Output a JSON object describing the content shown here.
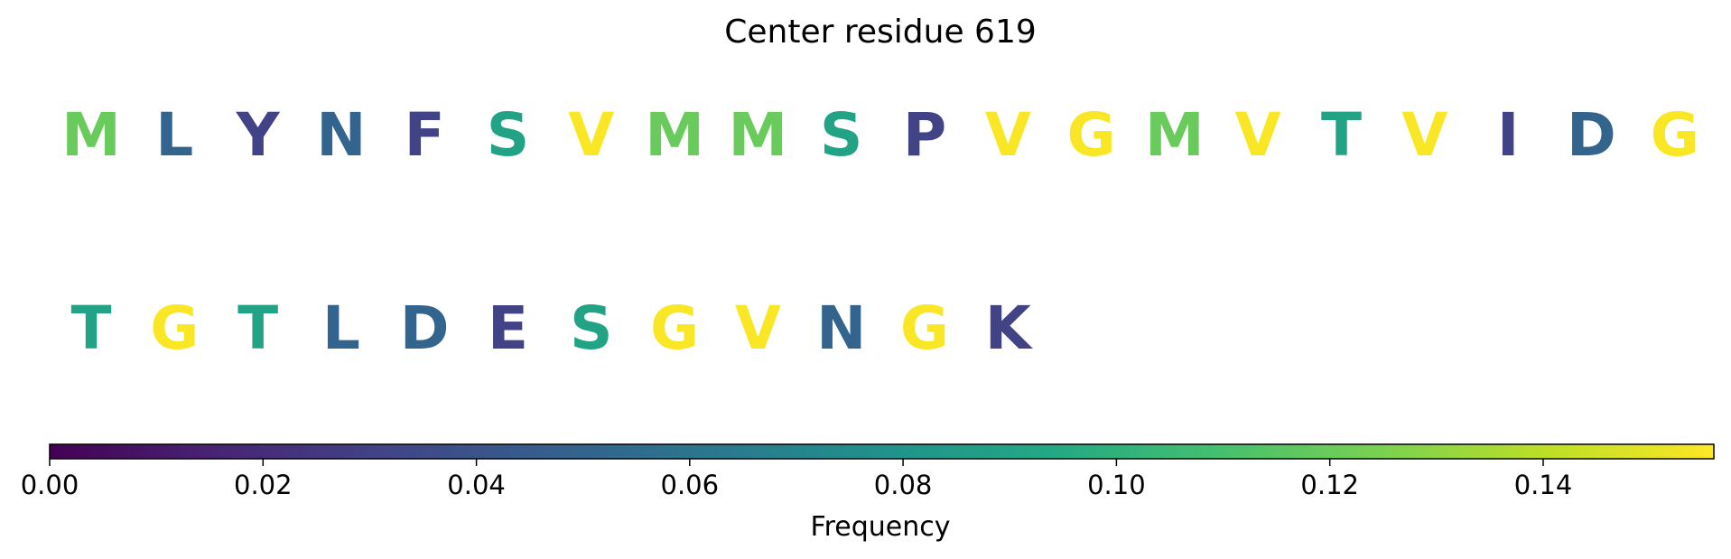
{
  "chart_data": {
    "type": "heatmap",
    "title": "Center residue 619",
    "colormap": "viridis",
    "rows": [
      {
        "residues": [
          {
            "letter": "M",
            "frequency": 0.12
          },
          {
            "letter": "L",
            "frequency": 0.05
          },
          {
            "letter": "Y",
            "frequency": 0.03
          },
          {
            "letter": "N",
            "frequency": 0.05
          },
          {
            "letter": "F",
            "frequency": 0.03
          },
          {
            "letter": "S",
            "frequency": 0.09
          },
          {
            "letter": "V",
            "frequency": 0.155
          },
          {
            "letter": "M",
            "frequency": 0.12
          },
          {
            "letter": "M",
            "frequency": 0.12
          },
          {
            "letter": "S",
            "frequency": 0.09
          },
          {
            "letter": "P",
            "frequency": 0.03
          },
          {
            "letter": "V",
            "frequency": 0.155
          },
          {
            "letter": "G",
            "frequency": 0.155
          },
          {
            "letter": "M",
            "frequency": 0.12
          },
          {
            "letter": "V",
            "frequency": 0.155
          },
          {
            "letter": "T",
            "frequency": 0.09
          },
          {
            "letter": "V",
            "frequency": 0.155
          },
          {
            "letter": "I",
            "frequency": 0.03
          },
          {
            "letter": "D",
            "frequency": 0.05
          },
          {
            "letter": "G",
            "frequency": 0.155
          }
        ]
      },
      {
        "residues": [
          {
            "letter": "T",
            "frequency": 0.09
          },
          {
            "letter": "G",
            "frequency": 0.155
          },
          {
            "letter": "T",
            "frequency": 0.09
          },
          {
            "letter": "L",
            "frequency": 0.05
          },
          {
            "letter": "D",
            "frequency": 0.05
          },
          {
            "letter": "E",
            "frequency": 0.03
          },
          {
            "letter": "S",
            "frequency": 0.09
          },
          {
            "letter": "G",
            "frequency": 0.155
          },
          {
            "letter": "V",
            "frequency": 0.155
          },
          {
            "letter": "N",
            "frequency": 0.05
          },
          {
            "letter": "G",
            "frequency": 0.155
          },
          {
            "letter": "K",
            "frequency": 0.03
          }
        ]
      }
    ],
    "colorbar": {
      "label": "Frequency",
      "range": [
        0,
        0.156
      ],
      "ticks": [
        0.0,
        0.02,
        0.04,
        0.06,
        0.08,
        0.1,
        0.12,
        0.14
      ],
      "tick_labels": [
        "0.00",
        "0.02",
        "0.04",
        "0.06",
        "0.08",
        "0.10",
        "0.12",
        "0.14"
      ],
      "orientation": "horizontal",
      "placement": "bottom"
    }
  }
}
